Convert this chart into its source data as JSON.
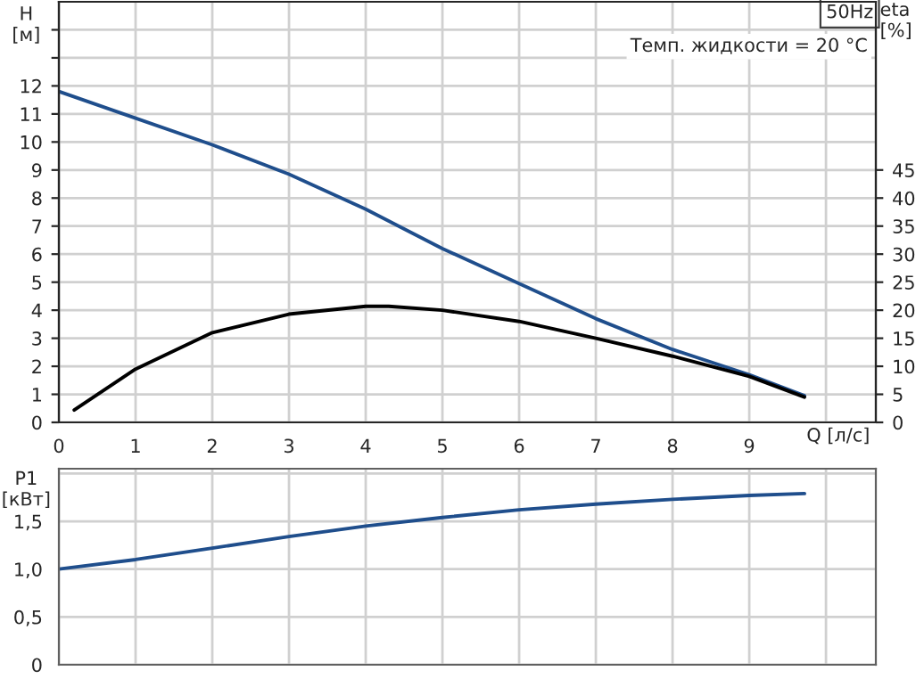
{
  "chart_data": [
    {
      "type": "line",
      "xlabel": "Q [л/с]",
      "ylabel": "H\n[м]",
      "y2label": "eta\n[%]",
      "annotations": [
        "50Hz",
        "Темп. жидкости = 20 °C"
      ],
      "series": [
        {
          "color": "#1f4e8c",
          "x": [
            0,
            1,
            2,
            3,
            4,
            5,
            6,
            7,
            8,
            9,
            9.72
          ],
          "values": [
            11.8,
            10.85,
            9.9,
            8.85,
            7.6,
            6.2,
            4.95,
            3.7,
            2.6,
            1.7,
            0.95
          ]
        },
        {
          "color": "#000000",
          "axis": "y2",
          "x": [
            0.2,
            1,
            2,
            3,
            4,
            4.3,
            5,
            6,
            7,
            8,
            9,
            9.72
          ],
          "values": [
            2.2,
            9.5,
            16,
            19.3,
            20.7,
            20.7,
            20,
            18,
            15,
            11.8,
            8.2,
            4.5
          ]
        }
      ],
      "xlim": [
        0,
        10.65
      ],
      "xticks": [
        0,
        1,
        2,
        3,
        4,
        5,
        6,
        7,
        8,
        9,
        {
          "value": 10,
          "label": null
        }
      ],
      "ylim": [
        0,
        15
      ],
      "yticks": [
        0,
        1,
        2,
        3,
        4,
        5,
        6,
        7,
        8,
        9,
        10,
        11,
        12,
        {
          "value": 13,
          "label": null
        },
        {
          "value": 14,
          "label": null
        }
      ],
      "y2lim": [
        0,
        75
      ],
      "y2ticks": [
        0,
        5,
        10,
        15,
        20,
        25,
        30,
        35,
        40,
        45
      ],
      "grid": true,
      "marker": "none",
      "line_style": "solid"
    },
    {
      "type": "line",
      "ylabel": "P1\n[кВт]",
      "x": [
        0,
        1,
        2,
        3,
        4,
        5,
        6,
        7,
        8,
        9,
        9.72
      ],
      "series": [
        {
          "color": "#1f4e8c",
          "values": [
            1.0,
            1.1,
            1.22,
            1.34,
            1.45,
            1.54,
            1.62,
            1.68,
            1.73,
            1.77,
            1.79
          ]
        }
      ],
      "xlim": [
        0,
        10.65
      ],
      "xticks": [
        0,
        1,
        2,
        3,
        4,
        5,
        6,
        7,
        8,
        9,
        {
          "value": 10,
          "label": null
        }
      ],
      "ylim": [
        0,
        2.05
      ],
      "yticks": [
        0,
        {
          "value": 0.5,
          "label": "0,5"
        },
        {
          "value": 1.0,
          "label": "1,0"
        },
        {
          "value": 1.5,
          "label": "1,5"
        },
        {
          "value": 2.0,
          "label": null
        }
      ],
      "tick_labels": "y",
      "grid": true,
      "marker": "none",
      "line_style": "solid"
    }
  ]
}
